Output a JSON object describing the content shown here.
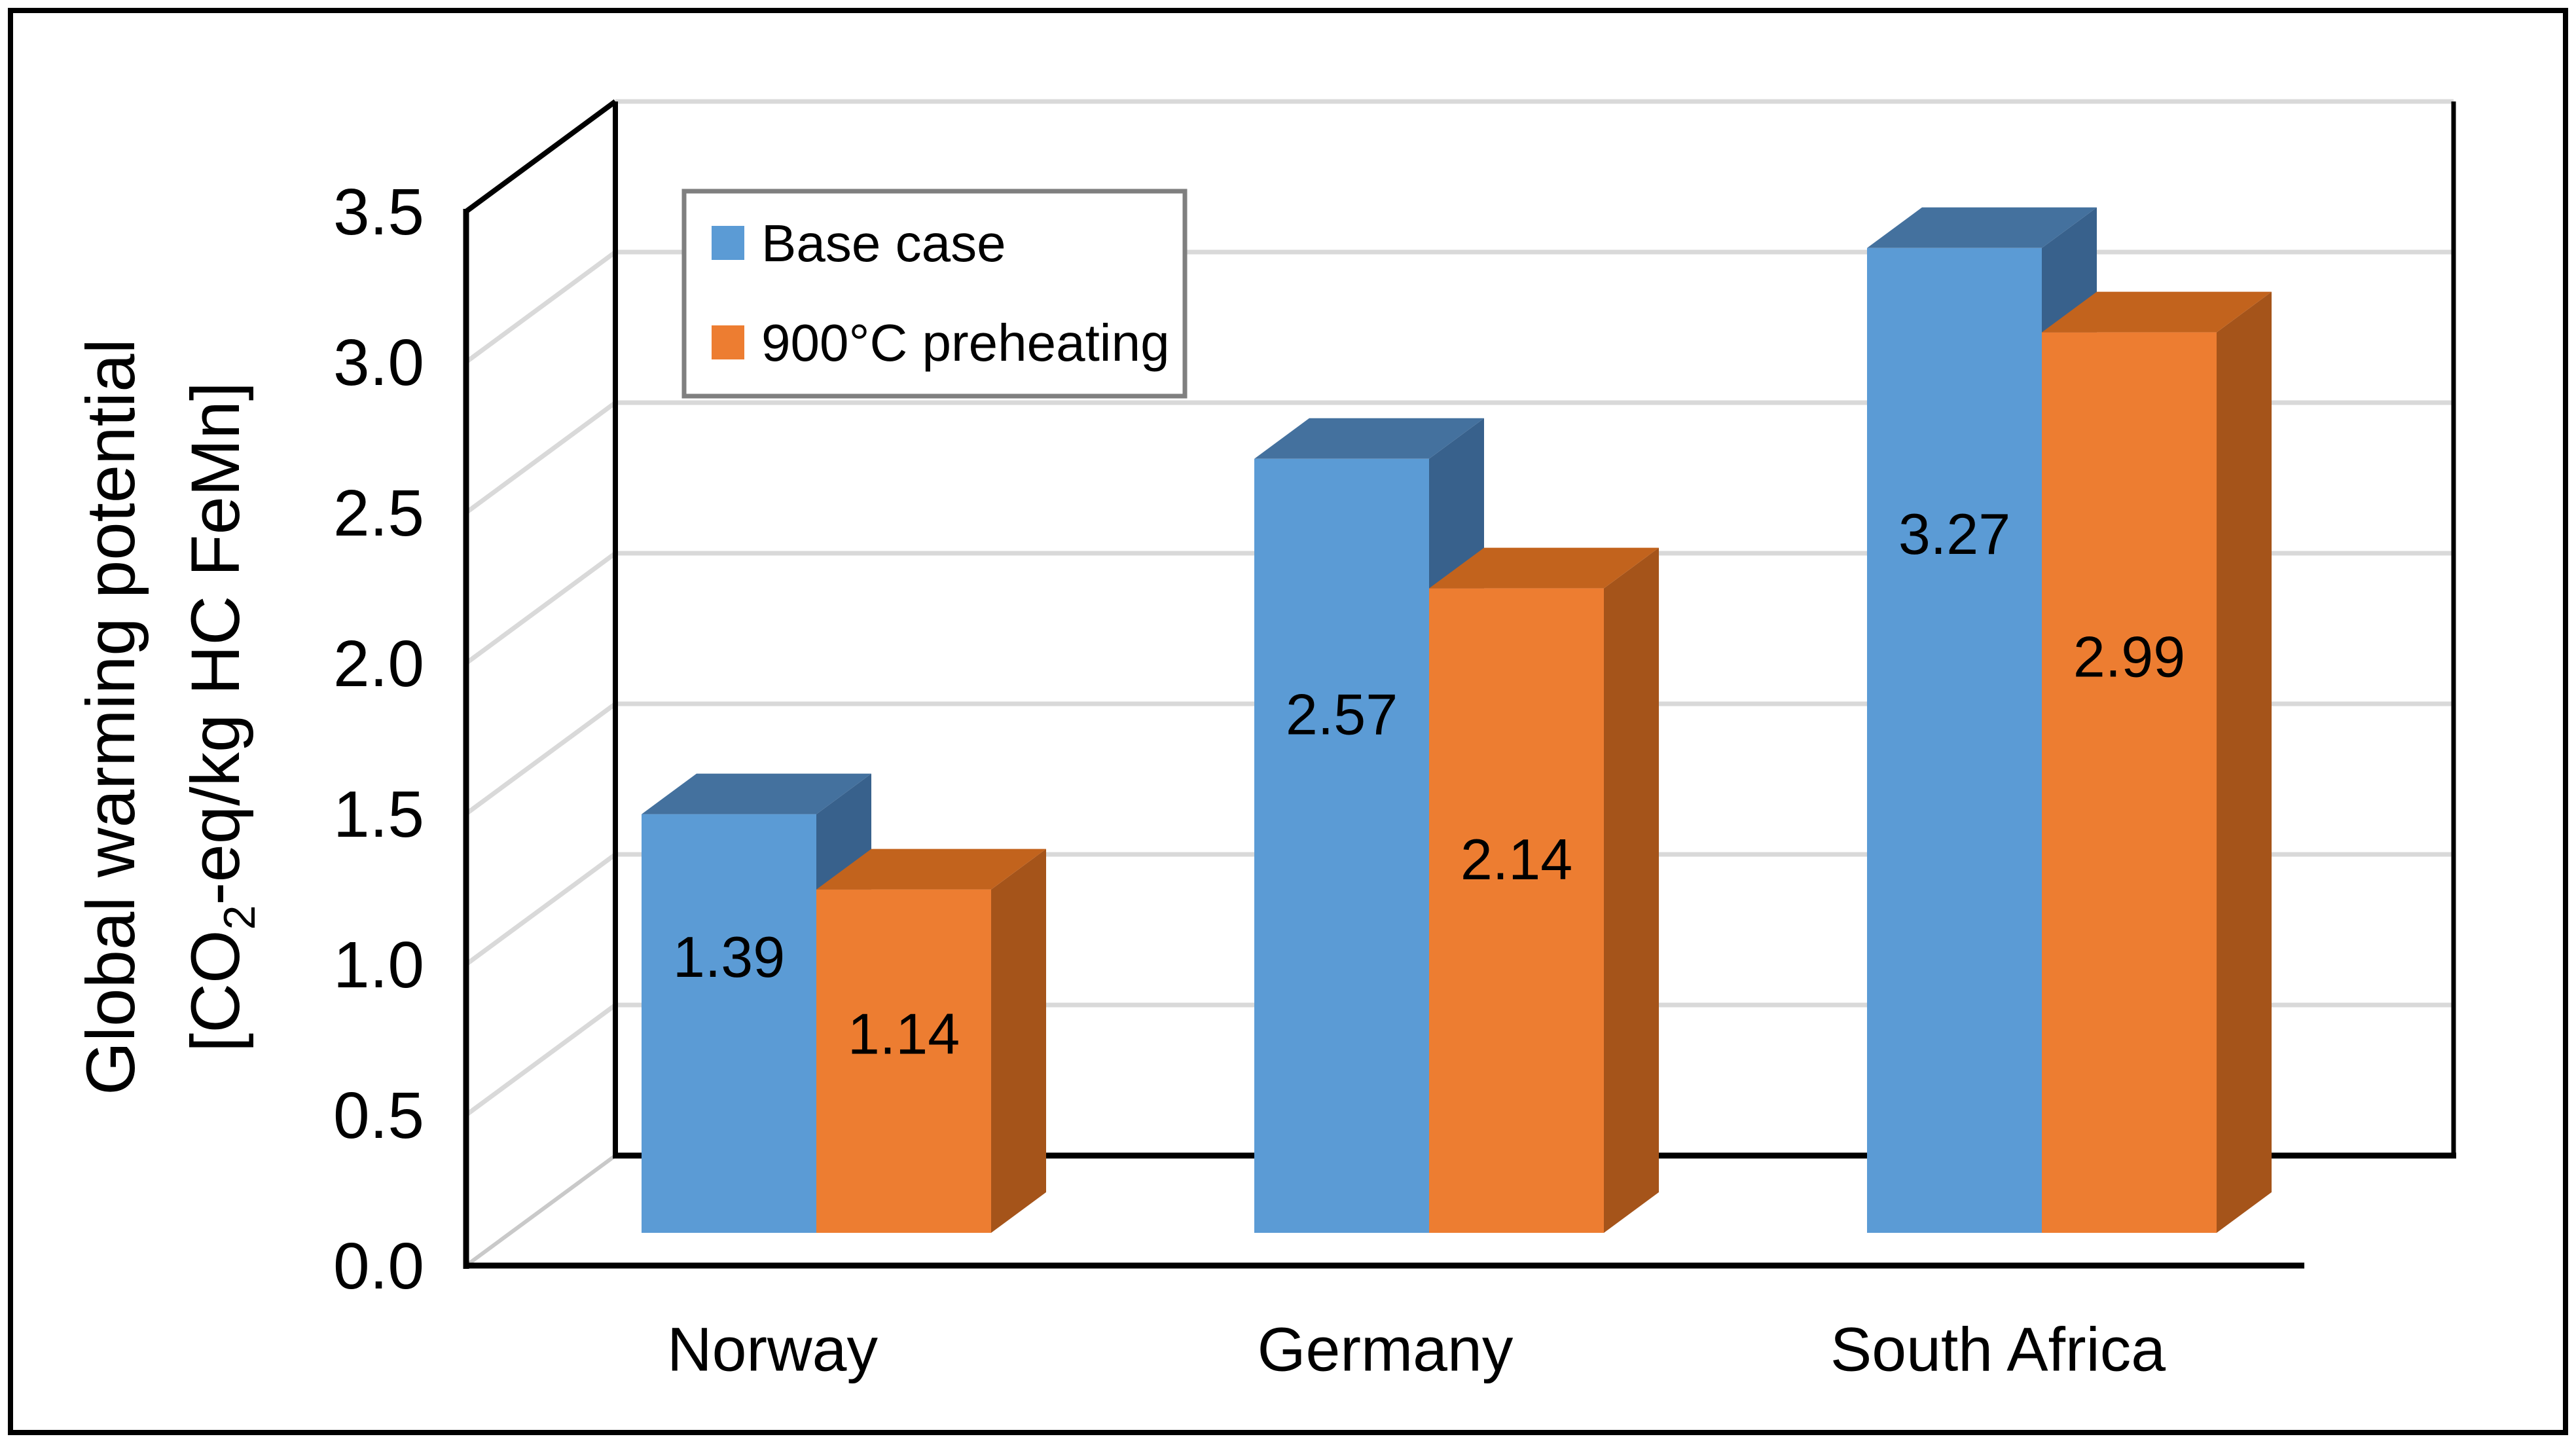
{
  "chart_data": {
    "type": "bar",
    "variant": "3d-clustered-column",
    "title": "",
    "categories": [
      "Norway",
      "Germany",
      "South Africa"
    ],
    "series": [
      {
        "name": "Base case",
        "color": "#5B9BD5",
        "color_top": "#44719E",
        "color_side": "#38618C",
        "values": [
          1.39,
          2.57,
          3.27
        ],
        "labels": [
          "1.39",
          "2.57",
          "3.27"
        ]
      },
      {
        "name": "900°C preheating",
        "color": "#ED7D31",
        "color_top": "#C2631D",
        "color_side": "#A5541A",
        "values": [
          1.14,
          2.14,
          2.99
        ],
        "labels": [
          "1.14",
          "2.14",
          "2.99"
        ]
      }
    ],
    "ylabel": {
      "line1": "Global warming potential",
      "line2": "[CO2-eq/kg HC FeMn]",
      "line2_prefix": "[CO",
      "line2_sub": "2",
      "line2_suffix": "-eq/kg HC FeMn]"
    },
    "xlabel": "",
    "ytick_labels": [
      "0.0",
      "0.5",
      "1.0",
      "1.5",
      "2.0",
      "2.5",
      "3.0",
      "3.5"
    ],
    "ylim": [
      0,
      3.5
    ],
    "ytick_step": 0.5,
    "grid": true,
    "legend_position": "top-left-inside",
    "colors": {
      "gridline": "#D9D9D9",
      "floor_diagonal": "#C9C9C9",
      "axis_line": "#000000",
      "legend_border": "#7F7F7F",
      "outer_border": "#000000",
      "background": "#FFFFFF",
      "label_text": "#000000"
    }
  }
}
